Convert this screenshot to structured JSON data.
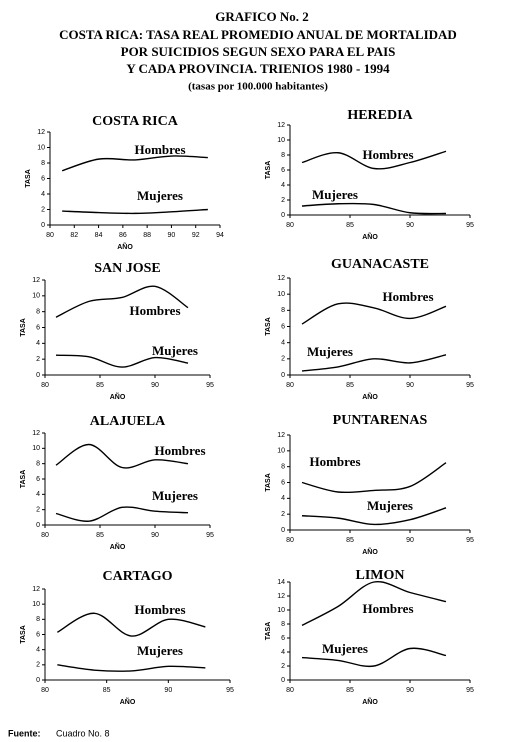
{
  "header": {
    "title": "GRAFICO No. 2",
    "lines": [
      "COSTA RICA: TASA REAL PROMEDIO ANUAL DE MORTALIDAD",
      "POR SUICIDIOS SEGUN SEXO PARA EL PAIS",
      "Y CADA PROVINCIA. TRIENIOS 1980 - 1994",
      "(tasas por 100.000 habitantes)"
    ]
  },
  "chart_data": [
    {
      "type": "line",
      "title": "COSTA RICA",
      "x_label": "AÑO",
      "y_label": "TASA",
      "xlim": [
        80,
        94
      ],
      "xticks": [
        80,
        82,
        84,
        86,
        88,
        90,
        92,
        94
      ],
      "ylim": [
        0,
        12
      ],
      "yticks": [
        0,
        2,
        4,
        6,
        8,
        10,
        12
      ],
      "x": [
        81,
        84,
        87,
        90,
        93
      ],
      "series": [
        {
          "name": "Hombres",
          "color": "#000000",
          "values": [
            7,
            8.5,
            8.4,
            8.9,
            8.7
          ]
        },
        {
          "name": "Mujeres",
          "color": "#000000",
          "values": [
            1.8,
            1.6,
            1.5,
            1.7,
            2.0
          ]
        }
      ]
    },
    {
      "type": "line",
      "title": "HEREDIA",
      "x_label": "AÑO",
      "y_label": "TASA",
      "xlim": [
        80,
        95
      ],
      "xticks": [
        80,
        85,
        90,
        95
      ],
      "ylim": [
        0,
        12
      ],
      "yticks": [
        0,
        2,
        4,
        6,
        8,
        10,
        12
      ],
      "x": [
        81,
        84,
        87,
        90,
        93
      ],
      "series": [
        {
          "name": "Hombres",
          "color": "#000000",
          "values": [
            7,
            8.3,
            6.2,
            7,
            8.5
          ]
        },
        {
          "name": "Mujeres",
          "color": "#000000",
          "values": [
            1.2,
            1.5,
            1.4,
            0.3,
            0.2
          ]
        }
      ]
    },
    {
      "type": "line",
      "title": "SAN JOSE",
      "x_label": "AÑO",
      "y_label": "TASA",
      "xlim": [
        80,
        95
      ],
      "xticks": [
        80,
        85,
        90,
        95
      ],
      "ylim": [
        0,
        12
      ],
      "yticks": [
        0,
        2,
        4,
        6,
        8,
        10,
        12
      ],
      "x": [
        81,
        84,
        87,
        90,
        93
      ],
      "series": [
        {
          "name": "Hombres",
          "color": "#000000",
          "values": [
            7.3,
            9.3,
            9.8,
            11.2,
            8.5
          ]
        },
        {
          "name": "Mujeres",
          "color": "#000000",
          "values": [
            2.5,
            2.3,
            1.0,
            2.2,
            1.5
          ]
        }
      ]
    },
    {
      "type": "line",
      "title": "GUANACASTE",
      "x_label": "AÑO",
      "y_label": "TASA",
      "xlim": [
        80,
        95
      ],
      "xticks": [
        80,
        85,
        90,
        95
      ],
      "ylim": [
        0,
        12
      ],
      "yticks": [
        0,
        2,
        4,
        6,
        8,
        10,
        12
      ],
      "x": [
        81,
        84,
        87,
        90,
        93
      ],
      "series": [
        {
          "name": "Hombres",
          "color": "#000000",
          "values": [
            6.3,
            8.8,
            8.3,
            7.0,
            8.5
          ]
        },
        {
          "name": "Mujeres",
          "color": "#000000",
          "values": [
            0.5,
            1.0,
            2.0,
            1.5,
            2.5
          ]
        }
      ]
    },
    {
      "type": "line",
      "title": "ALAJUELA",
      "x_label": "AÑO",
      "y_label": "TASA",
      "xlim": [
        80,
        95
      ],
      "xticks": [
        80,
        85,
        90,
        95
      ],
      "ylim": [
        0,
        12
      ],
      "yticks": [
        0,
        2,
        4,
        6,
        8,
        10,
        12
      ],
      "x": [
        81,
        84,
        87,
        90,
        93
      ],
      "series": [
        {
          "name": "Hombres",
          "color": "#000000",
          "values": [
            7.8,
            10.5,
            7.5,
            8.5,
            8.0
          ]
        },
        {
          "name": "Mujeres",
          "color": "#000000",
          "values": [
            1.5,
            0.5,
            2.3,
            1.8,
            1.6
          ]
        }
      ]
    },
    {
      "type": "line",
      "title": "PUNTARENAS",
      "x_label": "AÑO",
      "y_label": "TASA",
      "xlim": [
        80,
        95
      ],
      "xticks": [
        80,
        85,
        90,
        95
      ],
      "ylim": [
        0,
        12
      ],
      "yticks": [
        0,
        2,
        4,
        6,
        8,
        10,
        12
      ],
      "x": [
        81,
        84,
        87,
        90,
        93
      ],
      "series": [
        {
          "name": "Hombres",
          "color": "#000000",
          "values": [
            6,
            4.8,
            5,
            5.5,
            8.5
          ]
        },
        {
          "name": "Mujeres",
          "color": "#000000",
          "values": [
            1.8,
            1.5,
            0.7,
            1.3,
            2.8
          ]
        }
      ]
    },
    {
      "type": "line",
      "title": "CARTAGO",
      "x_label": "AÑO",
      "y_label": "TASA",
      "xlim": [
        80,
        95
      ],
      "xticks": [
        80,
        85,
        90,
        95
      ],
      "ylim": [
        0,
        12
      ],
      "yticks": [
        0,
        2,
        4,
        6,
        8,
        10,
        12
      ],
      "x": [
        81,
        84,
        87,
        90,
        93
      ],
      "series": [
        {
          "name": "Hombres",
          "color": "#000000",
          "values": [
            6.3,
            8.8,
            5.8,
            8.0,
            7.0
          ]
        },
        {
          "name": "Mujeres",
          "color": "#000000",
          "values": [
            2.0,
            1.3,
            1.2,
            1.8,
            1.6
          ]
        }
      ]
    },
    {
      "type": "line",
      "title": "LIMON",
      "x_label": "AÑO",
      "y_label": "TASA",
      "xlim": [
        80,
        95
      ],
      "xticks": [
        80,
        85,
        90,
        95
      ],
      "ylim": [
        0,
        14
      ],
      "yticks": [
        0,
        2,
        4,
        6,
        8,
        10,
        12,
        14
      ],
      "x": [
        81,
        84,
        87,
        90,
        93
      ],
      "series": [
        {
          "name": "Hombres",
          "color": "#000000",
          "values": [
            7.8,
            10.5,
            14,
            12.5,
            11.2
          ]
        },
        {
          "name": "Mujeres",
          "color": "#000000",
          "values": [
            3.2,
            2.8,
            2.0,
            4.5,
            3.5
          ]
        }
      ]
    }
  ],
  "footer": {
    "label": "Fuente:",
    "text": "Cuadro No. 8"
  }
}
